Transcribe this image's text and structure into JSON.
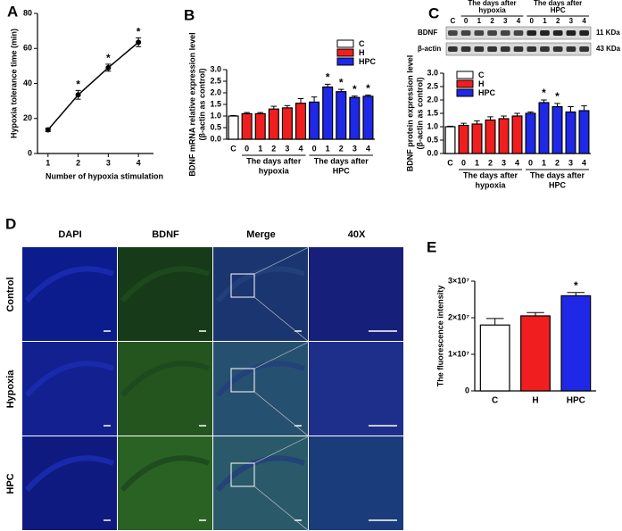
{
  "chart_data": [
    {
      "type": "line",
      "label": "A",
      "xlabel": "Number of hypoxia stimulation",
      "ylabel": [
        "Hypoxia tolerance time (min)"
      ],
      "x": [
        1,
        2,
        3,
        4
      ],
      "xlim": [
        0.65,
        4.5
      ],
      "xticks": [
        1,
        2,
        3,
        4
      ],
      "ylim": [
        0,
        80
      ],
      "yticks": [
        0,
        20,
        40,
        60,
        80
      ],
      "series": [
        {
          "color": "#000000",
          "values": [
            13.5,
            33.5,
            49,
            63.5
          ],
          "errors": [
            1,
            2.5,
            2,
            2.5
          ],
          "markers": [
            null,
            "*",
            "*",
            "*"
          ]
        }
      ]
    },
    {
      "type": "bar",
      "label": "B",
      "ylabel": [
        "BDNF mRNA relative expression level",
        "(β-actin as control)"
      ],
      "categories": [
        "C",
        "0",
        "1",
        "2",
        "3",
        "4",
        "0",
        "1",
        "2",
        "3",
        "4"
      ],
      "ylim": [
        0,
        3
      ],
      "yticks": [
        {
          "value": 0,
          "label": "0.0"
        },
        0.5,
        {
          "value": 1,
          "label": "1.0"
        },
        1.5,
        {
          "value": 2,
          "label": "2.0"
        },
        2.5,
        {
          "value": 3,
          "label": "3.0"
        }
      ],
      "legend": "top-right",
      "series": [
        {
          "name": "C",
          "color": "#ffffff",
          "values": [
            1.0,
            null,
            null,
            null,
            null,
            null,
            null,
            null,
            null,
            null,
            null
          ],
          "errors": [
            0.02,
            null,
            null,
            null,
            null,
            null,
            null,
            null,
            null,
            null,
            null
          ],
          "markers": [
            null,
            null,
            null,
            null,
            null,
            null,
            null,
            null,
            null,
            null,
            null
          ],
          "group_label": null
        },
        {
          "name": "H",
          "color": "#f01e1e",
          "values": [
            null,
            1.1,
            1.1,
            1.3,
            1.35,
            1.55,
            null,
            null,
            null,
            null,
            null
          ],
          "errors": [
            null,
            0.05,
            0.05,
            0.12,
            0.1,
            0.2,
            null,
            null,
            null,
            null,
            null
          ],
          "markers": [
            null,
            null,
            null,
            null,
            null,
            null,
            null,
            null,
            null,
            null,
            null
          ],
          "group_label": [
            "The days after",
            "hypoxia"
          ]
        },
        {
          "name": "HPC",
          "color": "#1e28e6",
          "values": [
            null,
            null,
            null,
            null,
            null,
            null,
            1.6,
            2.25,
            2.05,
            1.8,
            1.85
          ],
          "errors": [
            null,
            null,
            null,
            null,
            null,
            null,
            0.22,
            0.12,
            0.1,
            0.06,
            0.05
          ],
          "markers": [
            null,
            null,
            null,
            null,
            null,
            null,
            null,
            "*",
            "*",
            "*",
            "*"
          ],
          "group_label": [
            "The days after",
            "HPC"
          ]
        }
      ]
    },
    {
      "type": "bar",
      "label": "C",
      "ylabel": [
        "BDNF protein expression level",
        "(β-actin as control)"
      ],
      "categories": [
        "C",
        "0",
        "1",
        "2",
        "3",
        "4",
        "0",
        "1",
        "2",
        "3",
        "4"
      ],
      "ylim": [
        0,
        3
      ],
      "yticks": [
        {
          "value": 0,
          "label": "0.0"
        },
        0.5,
        {
          "value": 1,
          "label": "1.0"
        },
        1.5,
        {
          "value": 2,
          "label": "2.0"
        },
        2.5,
        {
          "value": 3,
          "label": "3.0"
        }
      ],
      "legend": "top-left",
      "blot": {
        "lanes": [
          "C",
          "0",
          "1",
          "2",
          "3",
          "4",
          "0",
          "1",
          "2",
          "3",
          "4"
        ],
        "headers": [
          [
            "The days after",
            "hypoxia"
          ],
          [
            "The days after",
            "HPC"
          ]
        ],
        "bands": [
          {
            "name": "BDNF",
            "size": "11 KDa"
          },
          {
            "name": "β-actin",
            "size": "43 KDa"
          }
        ]
      },
      "series": [
        {
          "name": "C",
          "color": "#ffffff",
          "values": [
            1.0,
            null,
            null,
            null,
            null,
            null,
            null,
            null,
            null,
            null,
            null
          ],
          "errors": [
            0.02,
            null,
            null,
            null,
            null,
            null,
            null,
            null,
            null,
            null,
            null
          ],
          "markers": [
            null,
            null,
            null,
            null,
            null,
            null,
            null,
            null,
            null,
            null,
            null
          ],
          "group_label": null
        },
        {
          "name": "H",
          "color": "#f01e1e",
          "values": [
            null,
            1.05,
            1.1,
            1.25,
            1.3,
            1.4,
            null,
            null,
            null,
            null,
            null
          ],
          "errors": [
            null,
            0.08,
            0.12,
            0.12,
            0.1,
            0.1,
            null,
            null,
            null,
            null,
            null
          ],
          "markers": [
            null,
            null,
            null,
            null,
            null,
            null,
            null,
            null,
            null,
            null,
            null
          ],
          "group_label": [
            "The days after",
            "hypoxia"
          ]
        },
        {
          "name": "HPC",
          "color": "#1e28e6",
          "values": [
            null,
            null,
            null,
            null,
            null,
            null,
            1.5,
            1.9,
            1.75,
            1.55,
            1.6
          ],
          "errors": [
            null,
            null,
            null,
            null,
            null,
            null,
            0.05,
            0.1,
            0.12,
            0.2,
            0.18
          ],
          "markers": [
            null,
            null,
            null,
            null,
            null,
            null,
            null,
            "*",
            "*",
            null,
            null
          ],
          "group_label": [
            "The days after",
            "HPC"
          ]
        }
      ]
    },
    {
      "type": "bar",
      "label": "E",
      "ylabel": [
        "The fluorescence intensity"
      ],
      "categories": [
        "C",
        "H",
        "HPC"
      ],
      "ylim": [
        0,
        30000000
      ],
      "yticks": [
        0,
        {
          "value": 10000000,
          "label": "1×10⁷"
        },
        {
          "value": 20000000,
          "label": "2×10⁷"
        },
        {
          "value": 30000000,
          "label": "3×10⁷"
        }
      ],
      "series": [
        {
          "colors": [
            "#ffffff",
            "#f01e1e",
            "#1e28e6"
          ],
          "values": [
            18000000,
            20500000,
            26000000
          ],
          "errors": [
            1800000,
            900000,
            900000
          ],
          "markers": [
            null,
            null,
            "*"
          ]
        }
      ]
    }
  ],
  "panel_d": {
    "label": "D",
    "columns": [
      "DAPI",
      "BDNF",
      "Merge",
      "40X"
    ],
    "rows": [
      "Control",
      "Hypoxia",
      "HPC"
    ]
  }
}
